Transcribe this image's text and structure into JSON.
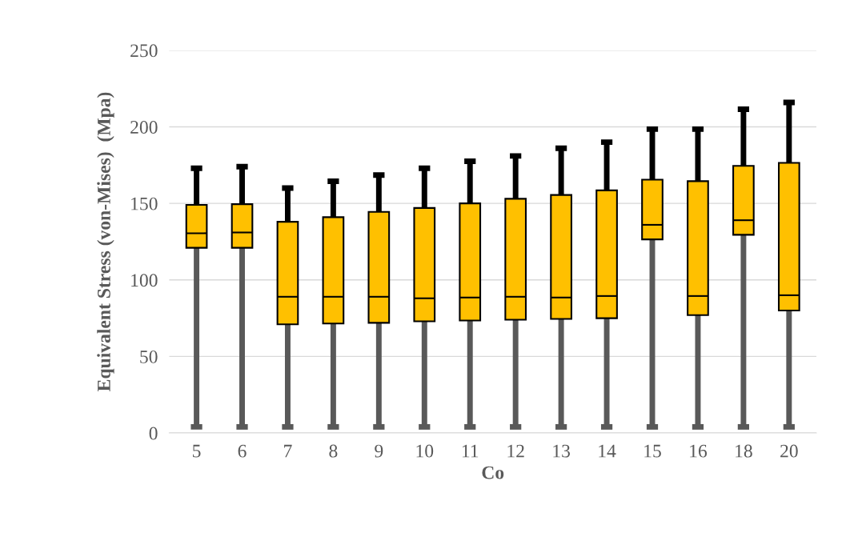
{
  "chart_data": {
    "type": "box",
    "xlabel": "Co",
    "ylabel": "Equivalent Stress (von-Mises)  (Mpa)",
    "categories": [
      "5",
      "6",
      "7",
      "8",
      "9",
      "10",
      "11",
      "12",
      "13",
      "14",
      "15",
      "16",
      "18",
      "20"
    ],
    "color": "#ffc000",
    "boxes": [
      {
        "low": 4,
        "q1": 121,
        "median": 130.5,
        "q3": 149,
        "high": 173
      },
      {
        "low": 4,
        "q1": 121,
        "median": 131,
        "q3": 149.5,
        "high": 174
      },
      {
        "low": 4,
        "q1": 71,
        "median": 89,
        "q3": 138,
        "high": 160
      },
      {
        "low": 4,
        "q1": 71.5,
        "median": 89,
        "q3": 141,
        "high": 164.5
      },
      {
        "low": 4,
        "q1": 72,
        "median": 89,
        "q3": 144.5,
        "high": 168.5
      },
      {
        "low": 4,
        "q1": 73,
        "median": 88,
        "q3": 147,
        "high": 173
      },
      {
        "low": 4,
        "q1": 73.5,
        "median": 88.5,
        "q3": 150,
        "high": 177.5
      },
      {
        "low": 4,
        "q1": 74,
        "median": 89,
        "q3": 153,
        "high": 181
      },
      {
        "low": 4,
        "q1": 74.5,
        "median": 88.5,
        "q3": 155.5,
        "high": 186
      },
      {
        "low": 4,
        "q1": 75,
        "median": 89.5,
        "q3": 158.5,
        "high": 190
      },
      {
        "low": 4,
        "q1": 126.5,
        "median": 136,
        "q3": 165.5,
        "high": 198.5
      },
      {
        "low": 4,
        "q1": 77,
        "median": 89.5,
        "q3": 164.5,
        "high": 198.5
      },
      {
        "low": 4,
        "q1": 129.5,
        "median": 139,
        "q3": 174.5,
        "high": 211.5
      },
      {
        "low": 4,
        "q1": 80,
        "median": 90,
        "q3": 176.5,
        "high": 216
      }
    ],
    "ylim": [
      0,
      250
    ],
    "yticks": [
      0,
      50,
      100,
      150,
      200,
      250
    ],
    "grid": "y",
    "legend": false
  }
}
